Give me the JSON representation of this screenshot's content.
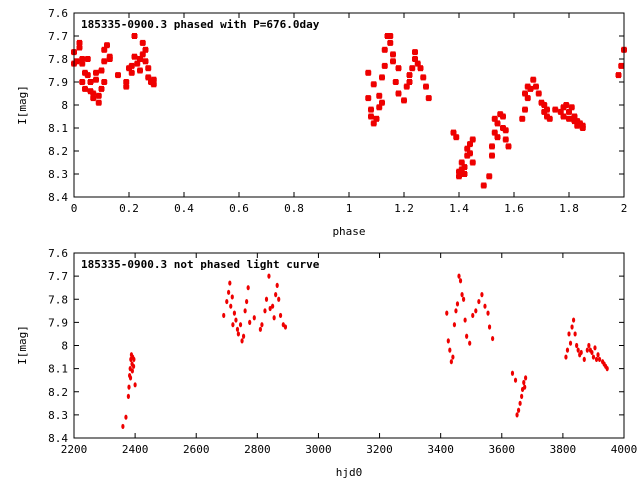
{
  "chart_data": [
    {
      "type": "scatter",
      "title": "185335-0900.3 phased with P=676.0day",
      "xlabel": "phase",
      "ylabel": "I[mag]",
      "xlim": [
        0,
        2
      ],
      "ylim": [
        8.4,
        7.6
      ],
      "y_inverted": true,
      "xticks": [
        "0",
        "0.2",
        "0.4",
        "0.6",
        "0.8",
        "1",
        "1.2",
        "1.4",
        "1.6",
        "1.8",
        "2"
      ],
      "yticks": [
        "7.6",
        "7.7",
        "7.8",
        "7.9",
        "8",
        "8.1",
        "8.2",
        "8.3",
        "8.4"
      ],
      "marker_color": "#ee0000",
      "series": [
        {
          "points": [
            [
              0.0,
              7.82
            ],
            [
              0.0,
              7.77
            ],
            [
              0.01,
              7.81
            ],
            [
              0.02,
              7.75
            ],
            [
              0.02,
              7.73
            ],
            [
              0.03,
              7.82
            ],
            [
              0.03,
              7.8
            ],
            [
              0.03,
              7.9
            ],
            [
              0.04,
              7.86
            ],
            [
              0.04,
              7.93
            ],
            [
              0.05,
              7.87
            ],
            [
              0.05,
              7.8
            ],
            [
              0.06,
              7.94
            ],
            [
              0.06,
              7.9
            ],
            [
              0.07,
              7.97
            ],
            [
              0.07,
              7.95
            ],
            [
              0.08,
              7.89
            ],
            [
              0.08,
              7.86
            ],
            [
              0.09,
              7.99
            ],
            [
              0.09,
              7.96
            ],
            [
              0.1,
              7.93
            ],
            [
              0.1,
              7.85
            ],
            [
              0.11,
              7.9
            ],
            [
              0.11,
              7.81
            ],
            [
              0.11,
              7.76
            ],
            [
              0.12,
              7.74
            ],
            [
              0.13,
              7.79
            ],
            [
              0.13,
              7.8
            ],
            [
              0.16,
              7.87
            ],
            [
              0.19,
              7.92
            ],
            [
              0.19,
              7.9
            ],
            [
              0.2,
              7.84
            ],
            [
              0.21,
              7.83
            ],
            [
              0.21,
              7.86
            ],
            [
              0.22,
              7.79
            ],
            [
              0.22,
              7.7
            ],
            [
              0.23,
              7.82
            ],
            [
              0.24,
              7.85
            ],
            [
              0.24,
              7.8
            ],
            [
              0.25,
              7.78
            ],
            [
              0.25,
              7.73
            ],
            [
              0.26,
              7.76
            ],
            [
              0.26,
              7.81
            ],
            [
              0.27,
              7.88
            ],
            [
              0.27,
              7.84
            ],
            [
              0.28,
              7.9
            ],
            [
              0.29,
              7.91
            ],
            [
              0.29,
              7.89
            ],
            [
              1.07,
              7.97
            ],
            [
              1.07,
              7.86
            ],
            [
              1.08,
              8.02
            ],
            [
              1.08,
              8.05
            ],
            [
              1.09,
              7.91
            ],
            [
              1.09,
              8.08
            ],
            [
              1.1,
              8.06
            ],
            [
              1.11,
              8.01
            ],
            [
              1.11,
              7.96
            ],
            [
              1.12,
              7.99
            ],
            [
              1.12,
              7.88
            ],
            [
              1.13,
              7.83
            ],
            [
              1.13,
              7.76
            ],
            [
              1.14,
              7.7
            ],
            [
              1.15,
              7.73
            ],
            [
              1.15,
              7.7
            ],
            [
              1.16,
              7.78
            ],
            [
              1.16,
              7.81
            ],
            [
              1.17,
              7.9
            ],
            [
              1.18,
              7.84
            ],
            [
              1.18,
              7.95
            ],
            [
              1.2,
              7.98
            ],
            [
              1.21,
              7.92
            ],
            [
              1.22,
              7.87
            ],
            [
              1.22,
              7.9
            ],
            [
              1.23,
              7.84
            ],
            [
              1.24,
              7.77
            ],
            [
              1.24,
              7.8
            ],
            [
              1.25,
              7.82
            ],
            [
              1.26,
              7.84
            ],
            [
              1.27,
              7.88
            ],
            [
              1.28,
              7.92
            ],
            [
              1.29,
              7.97
            ],
            [
              1.38,
              8.12
            ],
            [
              1.39,
              8.14
            ],
            [
              1.4,
              8.29
            ],
            [
              1.4,
              8.31
            ],
            [
              1.41,
              8.25
            ],
            [
              1.41,
              8.28
            ],
            [
              1.42,
              8.3
            ],
            [
              1.42,
              8.27
            ],
            [
              1.43,
              8.22
            ],
            [
              1.43,
              8.19
            ],
            [
              1.44,
              8.17
            ],
            [
              1.44,
              8.21
            ],
            [
              1.45,
              8.15
            ],
            [
              1.45,
              8.25
            ],
            [
              1.49,
              8.35
            ],
            [
              1.51,
              8.31
            ],
            [
              1.52,
              8.18
            ],
            [
              1.52,
              8.22
            ],
            [
              1.53,
              8.12
            ],
            [
              1.53,
              8.06
            ],
            [
              1.54,
              8.14
            ],
            [
              1.54,
              8.08
            ],
            [
              1.55,
              8.04
            ],
            [
              1.56,
              8.05
            ],
            [
              1.56,
              8.1
            ],
            [
              1.57,
              8.15
            ],
            [
              1.57,
              8.11
            ],
            [
              1.58,
              8.18
            ],
            [
              1.63,
              8.06
            ],
            [
              1.64,
              8.02
            ],
            [
              1.64,
              7.95
            ],
            [
              1.65,
              7.92
            ],
            [
              1.65,
              7.97
            ],
            [
              1.66,
              7.93
            ],
            [
              1.67,
              7.89
            ],
            [
              1.68,
              7.92
            ],
            [
              1.69,
              7.95
            ],
            [
              1.7,
              7.99
            ],
            [
              1.71,
              8.0
            ],
            [
              1.71,
              8.03
            ],
            [
              1.72,
              8.02
            ],
            [
              1.72,
              8.05
            ],
            [
              1.73,
              8.06
            ],
            [
              1.75,
              8.02
            ],
            [
              1.77,
              8.03
            ],
            [
              1.78,
              8.01
            ],
            [
              1.78,
              8.05
            ],
            [
              1.79,
              8.0
            ],
            [
              1.8,
              8.03
            ],
            [
              1.8,
              8.06
            ],
            [
              1.81,
              8.01
            ],
            [
              1.82,
              8.05
            ],
            [
              1.82,
              8.07
            ],
            [
              1.83,
              8.07
            ],
            [
              1.83,
              8.09
            ],
            [
              1.84,
              8.08
            ],
            [
              1.85,
              8.09
            ],
            [
              1.85,
              8.1
            ],
            [
              1.98,
              7.87
            ],
            [
              1.99,
              7.83
            ],
            [
              2.0,
              7.76
            ]
          ]
        }
      ]
    },
    {
      "type": "scatter",
      "title": "185335-0900.3 not phased light curve",
      "xlabel": "hjd0",
      "ylabel": "I[mag]",
      "xlim": [
        2200,
        4000
      ],
      "ylim": [
        8.4,
        7.6
      ],
      "y_inverted": true,
      "xticks": [
        "2200",
        "2400",
        "2600",
        "2800",
        "3000",
        "3200",
        "3400",
        "3600",
        "3800",
        "4000"
      ],
      "yticks": [
        "7.6",
        "7.7",
        "7.8",
        "7.9",
        "8",
        "8.1",
        "8.2",
        "8.3",
        "8.4"
      ],
      "marker_color": "#ee0000",
      "series": [
        {
          "points": [
            [
              2360,
              8.35
            ],
            [
              2370,
              8.31
            ],
            [
              2378,
              8.22
            ],
            [
              2380,
              8.18
            ],
            [
              2382,
              8.13
            ],
            [
              2384,
              8.1
            ],
            [
              2385,
              8.14
            ],
            [
              2386,
              8.06
            ],
            [
              2388,
              8.04
            ],
            [
              2390,
              8.08
            ],
            [
              2391,
              8.11
            ],
            [
              2392,
              8.05
            ],
            [
              2395,
              8.09
            ],
            [
              2396,
              8.06
            ],
            [
              2400,
              8.17
            ],
            [
              2690,
              7.87
            ],
            [
              2700,
              7.81
            ],
            [
              2706,
              7.77
            ],
            [
              2710,
              7.73
            ],
            [
              2713,
              7.83
            ],
            [
              2718,
              7.79
            ],
            [
              2720,
              7.91
            ],
            [
              2725,
              7.86
            ],
            [
              2730,
              7.89
            ],
            [
              2735,
              7.93
            ],
            [
              2738,
              7.95
            ],
            [
              2745,
              7.91
            ],
            [
              2750,
              7.98
            ],
            [
              2755,
              7.96
            ],
            [
              2760,
              7.85
            ],
            [
              2765,
              7.81
            ],
            [
              2770,
              7.75
            ],
            [
              2775,
              7.9
            ],
            [
              2790,
              7.88
            ],
            [
              2810,
              7.93
            ],
            [
              2815,
              7.91
            ],
            [
              2825,
              7.85
            ],
            [
              2830,
              7.8
            ],
            [
              2838,
              7.7
            ],
            [
              2842,
              7.84
            ],
            [
              2850,
              7.83
            ],
            [
              2855,
              7.88
            ],
            [
              2860,
              7.78
            ],
            [
              2865,
              7.74
            ],
            [
              2870,
              7.8
            ],
            [
              2876,
              7.87
            ],
            [
              2885,
              7.91
            ],
            [
              2892,
              7.92
            ],
            [
              3420,
              7.86
            ],
            [
              3425,
              7.98
            ],
            [
              3430,
              8.02
            ],
            [
              3435,
              8.07
            ],
            [
              3440,
              8.05
            ],
            [
              3445,
              7.91
            ],
            [
              3450,
              7.85
            ],
            [
              3455,
              7.82
            ],
            [
              3460,
              7.7
            ],
            [
              3465,
              7.72
            ],
            [
              3470,
              7.78
            ],
            [
              3475,
              7.8
            ],
            [
              3480,
              7.89
            ],
            [
              3485,
              7.96
            ],
            [
              3495,
              7.99
            ],
            [
              3505,
              7.87
            ],
            [
              3515,
              7.85
            ],
            [
              3525,
              7.81
            ],
            [
              3535,
              7.78
            ],
            [
              3545,
              7.83
            ],
            [
              3555,
              7.86
            ],
            [
              3560,
              7.92
            ],
            [
              3570,
              7.97
            ],
            [
              3635,
              8.12
            ],
            [
              3645,
              8.15
            ],
            [
              3650,
              8.3
            ],
            [
              3655,
              8.28
            ],
            [
              3660,
              8.25
            ],
            [
              3665,
              8.22
            ],
            [
              3668,
              8.19
            ],
            [
              3672,
              8.16
            ],
            [
              3675,
              8.18
            ],
            [
              3678,
              8.14
            ],
            [
              3810,
              8.05
            ],
            [
              3815,
              8.02
            ],
            [
              3820,
              7.95
            ],
            [
              3825,
              7.99
            ],
            [
              3830,
              7.92
            ],
            [
              3835,
              7.89
            ],
            [
              3840,
              7.95
            ],
            [
              3845,
              8.0
            ],
            [
              3850,
              8.02
            ],
            [
              3855,
              8.04
            ],
            [
              3860,
              8.03
            ],
            [
              3870,
              8.06
            ],
            [
              3880,
              8.02
            ],
            [
              3885,
              8.0
            ],
            [
              3890,
              8.02
            ],
            [
              3895,
              8.03
            ],
            [
              3900,
              8.05
            ],
            [
              3905,
              8.01
            ],
            [
              3910,
              8.06
            ],
            [
              3915,
              8.04
            ],
            [
              3920,
              8.06
            ],
            [
              3930,
              8.07
            ],
            [
              3935,
              8.08
            ],
            [
              3940,
              8.09
            ],
            [
              3945,
              8.1
            ]
          ]
        }
      ]
    }
  ]
}
